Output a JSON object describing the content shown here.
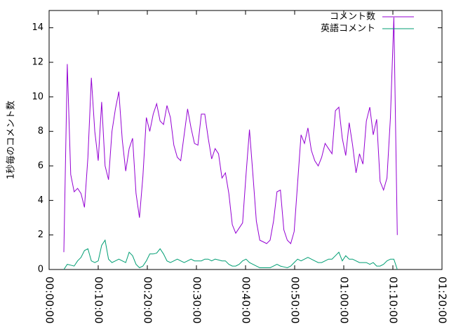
{
  "chart_data": {
    "type": "line",
    "y_label": "1秒毎のコメント数",
    "x": [
      "00:03:00",
      "00:03:42",
      "00:04:24",
      "00:05:06",
      "00:05:48",
      "00:06:30",
      "00:07:12",
      "00:07:54",
      "00:08:36",
      "00:09:18",
      "00:10:00",
      "00:10:42",
      "00:11:24",
      "00:12:06",
      "00:12:48",
      "00:13:30",
      "00:14:12",
      "00:14:54",
      "00:15:36",
      "00:16:18",
      "00:17:00",
      "00:17:42",
      "00:18:24",
      "00:19:06",
      "00:19:48",
      "00:20:30",
      "00:21:12",
      "00:21:54",
      "00:22:36",
      "00:23:18",
      "00:24:00",
      "00:24:42",
      "00:25:24",
      "00:26:06",
      "00:26:48",
      "00:27:30",
      "00:28:12",
      "00:28:54",
      "00:29:36",
      "00:30:18",
      "00:31:00",
      "00:31:42",
      "00:32:24",
      "00:33:06",
      "00:33:48",
      "00:34:30",
      "00:35:12",
      "00:35:54",
      "00:36:36",
      "00:37:18",
      "00:38:00",
      "00:38:42",
      "00:39:24",
      "00:40:06",
      "00:40:48",
      "00:41:30",
      "00:42:12",
      "00:42:54",
      "00:43:36",
      "00:44:18",
      "00:45:00",
      "00:45:42",
      "00:46:24",
      "00:47:06",
      "00:47:48",
      "00:48:30",
      "00:49:12",
      "00:49:54",
      "00:50:36",
      "00:51:18",
      "00:52:00",
      "00:52:42",
      "00:53:24",
      "00:54:06",
      "00:54:48",
      "00:55:30",
      "00:56:12",
      "00:56:54",
      "00:57:36",
      "00:58:18",
      "00:59:00",
      "00:59:42",
      "01:00:24",
      "01:01:06",
      "01:01:48",
      "01:02:30",
      "01:03:12",
      "01:03:54",
      "01:04:36",
      "01:05:18",
      "01:06:00",
      "01:06:42",
      "01:07:24",
      "01:08:06",
      "01:08:48",
      "01:09:30",
      "01:10:12",
      "01:10:54"
    ],
    "series": [
      {
        "name": "コメント数",
        "color": "#9400d3",
        "values": [
          1.0,
          11.9,
          5.5,
          4.5,
          4.7,
          4.4,
          3.6,
          6.5,
          11.1,
          8.0,
          6.3,
          9.7,
          6.0,
          5.2,
          8.0,
          9.3,
          10.3,
          7.5,
          5.7,
          7.0,
          7.6,
          4.4,
          3.0,
          5.4,
          8.8,
          8.0,
          9.0,
          9.6,
          8.6,
          8.4,
          9.5,
          8.8,
          7.2,
          6.5,
          6.3,
          7.8,
          9.3,
          8.2,
          7.3,
          7.2,
          9.0,
          9.0,
          7.6,
          6.4,
          7.0,
          6.7,
          5.3,
          5.6,
          4.4,
          2.6,
          2.1,
          2.4,
          2.7,
          5.5,
          8.1,
          5.5,
          2.8,
          1.7,
          1.6,
          1.5,
          1.7,
          2.8,
          4.5,
          4.6,
          2.3,
          1.7,
          1.5,
          2.2,
          5.0,
          7.8,
          7.3,
          8.2,
          6.9,
          6.3,
          6.0,
          6.5,
          7.3,
          7.0,
          6.7,
          9.2,
          9.4,
          7.6,
          6.6,
          8.5,
          7.2,
          5.6,
          6.7,
          6.1,
          8.6,
          9.4,
          7.8,
          8.7,
          5.1,
          4.6,
          5.3,
          8.8,
          14.6,
          2.0
        ]
      },
      {
        "name": "英語コメント",
        "color": "#009e73",
        "values": [
          0.0,
          0.3,
          0.25,
          0.2,
          0.5,
          0.7,
          1.1,
          1.2,
          0.5,
          0.4,
          0.5,
          1.4,
          1.7,
          0.6,
          0.4,
          0.5,
          0.6,
          0.5,
          0.4,
          1.0,
          0.8,
          0.3,
          0.1,
          0.2,
          0.5,
          0.9,
          0.9,
          0.95,
          1.2,
          0.9,
          0.5,
          0.4,
          0.5,
          0.6,
          0.5,
          0.4,
          0.5,
          0.6,
          0.5,
          0.5,
          0.5,
          0.6,
          0.6,
          0.5,
          0.6,
          0.55,
          0.5,
          0.5,
          0.3,
          0.2,
          0.2,
          0.3,
          0.5,
          0.6,
          0.4,
          0.3,
          0.2,
          0.1,
          0.1,
          0.1,
          0.1,
          0.2,
          0.3,
          0.2,
          0.15,
          0.1,
          0.2,
          0.4,
          0.6,
          0.5,
          0.6,
          0.7,
          0.6,
          0.5,
          0.4,
          0.4,
          0.5,
          0.6,
          0.6,
          0.8,
          1.0,
          0.5,
          0.8,
          0.6,
          0.6,
          0.5,
          0.4,
          0.4,
          0.4,
          0.3,
          0.4,
          0.2,
          0.2,
          0.3,
          0.5,
          0.6,
          0.6,
          0.0
        ]
      }
    ],
    "xlim": [
      "00:00:00",
      "01:20:00"
    ],
    "xticks": [
      "00:00:00",
      "00:10:00",
      "00:20:00",
      "00:30:00",
      "00:40:00",
      "00:50:00",
      "01:00:00",
      "01:10:00",
      "01:20:00"
    ],
    "ylim": [
      0,
      15
    ],
    "yticks": [
      0,
      2,
      4,
      6,
      8,
      10,
      12,
      14
    ],
    "legend": "top-right"
  }
}
